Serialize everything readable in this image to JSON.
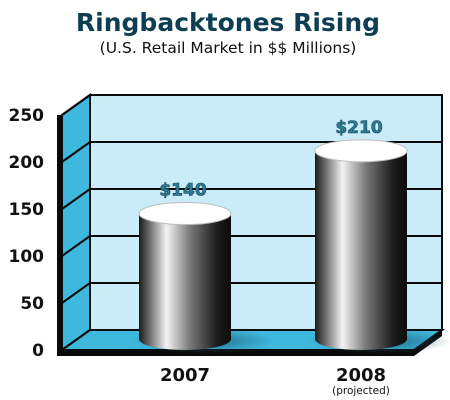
{
  "chart_data": {
    "type": "bar",
    "title": "Ringbacktones Rising",
    "subtitle": "(U.S. Retail Market in $$ Millions)",
    "categories": [
      "2007",
      "2008"
    ],
    "category_notes": [
      "",
      "(projected)"
    ],
    "values": [
      140,
      210
    ],
    "data_labels": [
      "$140",
      "$210"
    ],
    "yticks": [
      "0",
      "50",
      "100",
      "150",
      "200",
      "250"
    ],
    "ylim": [
      0,
      250
    ],
    "grid": true,
    "colors": {
      "wall": "#c9ecf8",
      "side_wall": "#3fb8de",
      "floor": "#3fb8de",
      "grid": "#0a0a0a",
      "bar_light": "#ffffff",
      "bar_dark": "#141414",
      "label": "#2e7c96",
      "title": "#0d3e52"
    }
  }
}
